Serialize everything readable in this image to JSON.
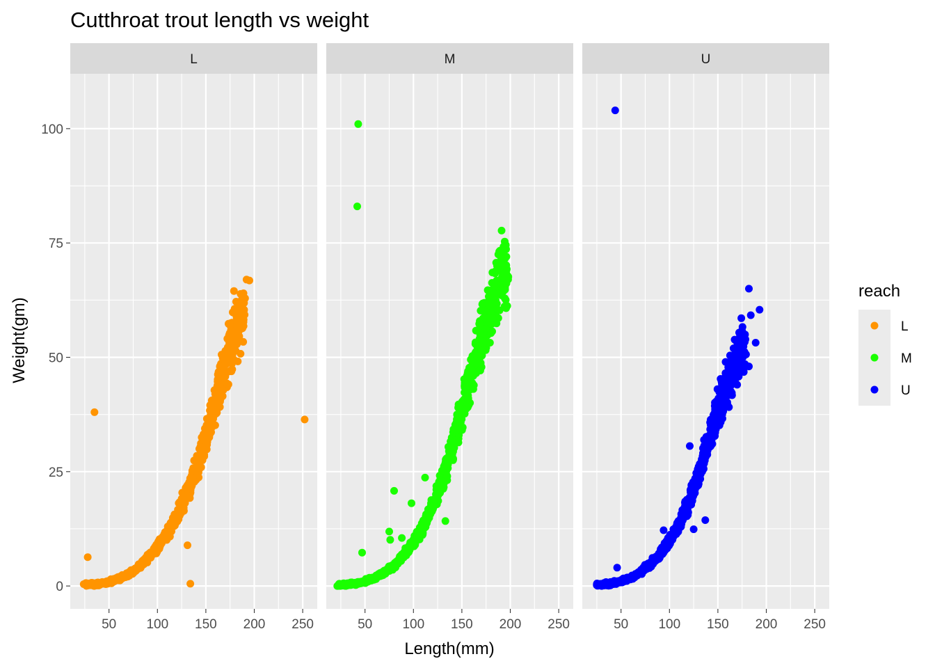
{
  "chart_data": {
    "type": "scatter",
    "title": "Cutthroat trout length vs weight",
    "xlabel": "Length(mm)",
    "ylabel": "Weight(gm)",
    "xlim": [
      10,
      265
    ],
    "ylim": [
      -5,
      112
    ],
    "x_ticks": [
      50,
      100,
      150,
      200,
      250
    ],
    "y_ticks": [
      0,
      25,
      50,
      75,
      100
    ],
    "grid": true,
    "legend": {
      "title": "reach",
      "placement": "right",
      "entries": [
        {
          "label": "L",
          "color": "#ff9400"
        },
        {
          "label": "M",
          "color": "#1aff00"
        },
        {
          "label": "U",
          "color": "#0000ff"
        }
      ]
    },
    "facets": [
      {
        "label": "L",
        "color": "#ff9400",
        "trend": [
          [
            25,
            0.2
          ],
          [
            40,
            0.5
          ],
          [
            50,
            0.9
          ],
          [
            60,
            1.6
          ],
          [
            70,
            2.6
          ],
          [
            80,
            4.0
          ],
          [
            90,
            6.2
          ],
          [
            100,
            8.5
          ],
          [
            110,
            11.5
          ],
          [
            120,
            15.0
          ],
          [
            130,
            20.0
          ],
          [
            140,
            25.5
          ],
          [
            150,
            32.0
          ],
          [
            160,
            40.0
          ],
          [
            170,
            49.0
          ],
          [
            180,
            56.0
          ],
          [
            190,
            61.0
          ]
        ],
        "outliers": [
          [
            28,
            6.3
          ],
          [
            35,
            38.0
          ],
          [
            131,
            8.9
          ],
          [
            134,
            0.5
          ],
          [
            179,
            64.5
          ],
          [
            192,
            67.0
          ],
          [
            195,
            66.8
          ],
          [
            252,
            36.4
          ],
          [
            186,
            60.5
          ],
          [
            190,
            59.3
          ],
          [
            187,
            56.3
          ],
          [
            175,
            57.0
          ],
          [
            183,
            49.1
          ]
        ]
      },
      {
        "label": "M",
        "color": "#1aff00",
        "trend": [
          [
            22,
            0.2
          ],
          [
            40,
            0.5
          ],
          [
            50,
            1.0
          ],
          [
            60,
            1.8
          ],
          [
            70,
            3.0
          ],
          [
            80,
            4.6
          ],
          [
            90,
            6.8
          ],
          [
            100,
            9.5
          ],
          [
            110,
            13.0
          ],
          [
            120,
            17.5
          ],
          [
            130,
            23.5
          ],
          [
            140,
            30.5
          ],
          [
            150,
            38.5
          ],
          [
            160,
            46.5
          ],
          [
            170,
            54.0
          ],
          [
            180,
            61.0
          ],
          [
            190,
            67.0
          ],
          [
            197,
            69.0
          ]
        ],
        "outliers": [
          [
            43,
            101.0
          ],
          [
            42,
            83.0
          ],
          [
            80,
            20.8
          ],
          [
            98,
            18.1
          ],
          [
            75,
            11.9
          ],
          [
            76,
            10.1
          ],
          [
            88,
            10.5
          ],
          [
            133,
            14.2
          ],
          [
            47,
            7.3
          ],
          [
            112,
            23.7
          ],
          [
            191,
            77.7
          ],
          [
            196,
            72.0
          ],
          [
            193,
            74.2
          ],
          [
            198,
            67.6
          ],
          [
            194,
            61.1
          ],
          [
            179,
            53.2
          ],
          [
            180,
            55.3
          ]
        ]
      },
      {
        "label": "U",
        "color": "#0000ff",
        "trend": [
          [
            25,
            0.2
          ],
          [
            40,
            0.5
          ],
          [
            50,
            1.0
          ],
          [
            60,
            1.8
          ],
          [
            70,
            3.1
          ],
          [
            80,
            4.8
          ],
          [
            90,
            7.0
          ],
          [
            100,
            9.8
          ],
          [
            110,
            13.5
          ],
          [
            120,
            18.5
          ],
          [
            130,
            24.5
          ],
          [
            140,
            31.5
          ],
          [
            150,
            38.5
          ],
          [
            160,
            44.0
          ],
          [
            170,
            50.0
          ],
          [
            178,
            53.0
          ]
        ],
        "outliers": [
          [
            44,
            104.0
          ],
          [
            46,
            4.0
          ],
          [
            94,
            12.2
          ],
          [
            121,
            30.6
          ],
          [
            125,
            12.4
          ],
          [
            137,
            14.4
          ],
          [
            182,
            65.0
          ],
          [
            193,
            60.4
          ],
          [
            184,
            59.2
          ],
          [
            189,
            53.2
          ],
          [
            172,
            55.4
          ],
          [
            178,
            48.5
          ],
          [
            182,
            48.0
          ],
          [
            158,
            49.0
          ]
        ]
      }
    ]
  }
}
